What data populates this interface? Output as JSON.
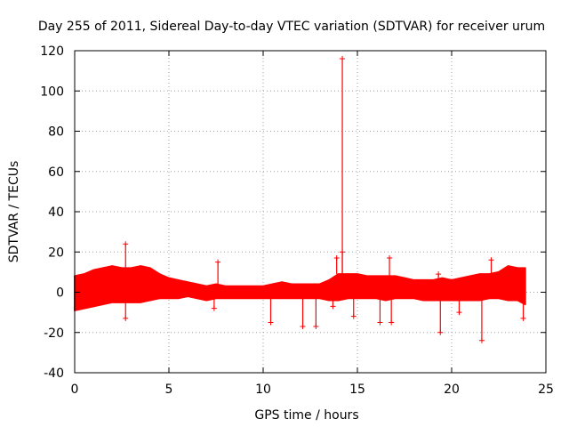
{
  "chart_data": {
    "type": "scatter",
    "title": "Day 255 of 2011, Sidereal Day-to-day VTEC variation (SDTVAR) for receiver urum",
    "xlabel": "GPS time / hours",
    "ylabel": "SDTVAR / TECUs",
    "xlim": [
      0,
      25
    ],
    "ylim": [
      -40,
      120
    ],
    "xticks": [
      0,
      5,
      10,
      15,
      20,
      25
    ],
    "yticks": [
      -40,
      -20,
      0,
      20,
      40,
      60,
      80,
      100,
      120
    ],
    "grid": true,
    "marker": "+",
    "color": "#ff0000",
    "series": [
      {
        "name": "SDTVAR",
        "band": {
          "description": "dense data envelope (lower/upper bound vs time)",
          "x": [
            0.0,
            0.5,
            1.0,
            1.5,
            2.0,
            2.5,
            3.0,
            3.5,
            4.0,
            4.5,
            5.0,
            5.5,
            6.0,
            6.5,
            7.0,
            7.5,
            8.0,
            8.5,
            9.0,
            9.5,
            10.0,
            10.5,
            11.0,
            11.5,
            12.0,
            12.5,
            13.0,
            13.5,
            14.0,
            14.5,
            15.0,
            15.5,
            16.0,
            16.5,
            17.0,
            17.5,
            18.0,
            18.5,
            19.0,
            19.5,
            20.0,
            20.5,
            21.0,
            21.5,
            22.0,
            22.5,
            23.0,
            23.5,
            23.9
          ],
          "lower": [
            -9,
            -8,
            -7,
            -6,
            -5,
            -5,
            -5,
            -5,
            -4,
            -3,
            -3,
            -3,
            -2,
            -3,
            -4,
            -3,
            -3,
            -3,
            -3,
            -3,
            -3,
            -3,
            -3,
            -3,
            -3,
            -3,
            -3,
            -4,
            -4,
            -3,
            -3,
            -3,
            -3,
            -4,
            -3,
            -3,
            -3,
            -4,
            -4,
            -4,
            -4,
            -4,
            -4,
            -4,
            -3,
            -3,
            -4,
            -4,
            -6
          ],
          "upper": [
            8,
            9,
            11,
            12,
            13,
            12,
            12,
            13,
            12,
            9,
            7,
            6,
            5,
            4,
            3,
            4,
            3,
            3,
            3,
            3,
            3,
            4,
            5,
            4,
            4,
            4,
            4,
            6,
            9,
            9,
            9,
            8,
            8,
            8,
            8,
            7,
            6,
            6,
            6,
            7,
            6,
            7,
            8,
            9,
            9,
            10,
            13,
            12,
            12
          ]
        },
        "spikes": [
          {
            "x": 2.7,
            "y": 24
          },
          {
            "x": 2.7,
            "y": -13
          },
          {
            "x": 7.6,
            "y": 15
          },
          {
            "x": 7.4,
            "y": -8
          },
          {
            "x": 10.4,
            "y": -15
          },
          {
            "x": 12.1,
            "y": -17
          },
          {
            "x": 12.8,
            "y": -17
          },
          {
            "x": 14.2,
            "y": 116
          },
          {
            "x": 14.2,
            "y": 20
          },
          {
            "x": 13.9,
            "y": 17
          },
          {
            "x": 13.7,
            "y": -7
          },
          {
            "x": 14.8,
            "y": -12
          },
          {
            "x": 16.2,
            "y": -15
          },
          {
            "x": 16.7,
            "y": 17
          },
          {
            "x": 16.8,
            "y": -15
          },
          {
            "x": 19.3,
            "y": 9
          },
          {
            "x": 19.4,
            "y": -20
          },
          {
            "x": 20.4,
            "y": -10
          },
          {
            "x": 21.6,
            "y": -24
          },
          {
            "x": 22.1,
            "y": 16
          },
          {
            "x": 23.8,
            "y": -13
          }
        ]
      }
    ]
  }
}
